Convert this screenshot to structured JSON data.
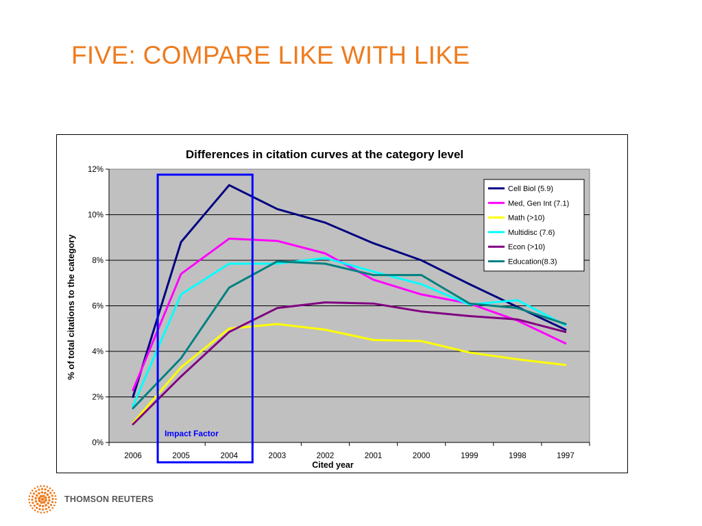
{
  "slide": {
    "title": "FIVE: COMPARE LIKE WITH LIKE",
    "title_color": "#ee7b1e"
  },
  "logo": {
    "text": "THOMSON REUTERS",
    "icon": "thomson-reuters-dot-sphere-icon",
    "color": "#ee7b1e"
  },
  "chart_data": {
    "type": "line",
    "title": "Differences in citation curves at the category level",
    "xlabel": "Cited year",
    "ylabel": "% of total citations to the category",
    "categories": [
      "2006",
      "2005",
      "2004",
      "2003",
      "2002",
      "2001",
      "2000",
      "1999",
      "1998",
      "1997"
    ],
    "ylim": [
      0,
      12
    ],
    "yticks": [
      0,
      2,
      4,
      6,
      8,
      10,
      12
    ],
    "ytick_labels": [
      "0%",
      "2%",
      "4%",
      "6%",
      "8%",
      "10%",
      "12%"
    ],
    "grid": "horizontal",
    "plot_background": "#c0c0c0",
    "legend_position": "top-right",
    "series": [
      {
        "name": "Cell Biol (5.9)",
        "color": "#000080",
        "values": [
          2.0,
          8.8,
          11.3,
          10.25,
          9.65,
          8.75,
          8.0,
          6.95,
          5.95,
          4.95
        ]
      },
      {
        "name": "Med, Gen Int (7.1)",
        "color": "#ff00ff",
        "values": [
          2.3,
          7.4,
          8.95,
          8.85,
          8.3,
          7.15,
          6.5,
          6.1,
          5.35,
          4.35
        ]
      },
      {
        "name": "Math (>10)",
        "color": "#ffff00",
        "values": [
          0.85,
          3.3,
          5.0,
          5.2,
          4.95,
          4.5,
          4.45,
          3.95,
          3.65,
          3.4
        ]
      },
      {
        "name": "Multidisc (7.6)",
        "color": "#00ffff",
        "values": [
          1.6,
          6.5,
          7.85,
          7.85,
          8.1,
          7.5,
          6.95,
          6.05,
          6.25,
          5.15
        ]
      },
      {
        "name": "Econ (>10)",
        "color": "#800080",
        "values": [
          0.8,
          2.9,
          4.85,
          5.9,
          6.15,
          6.1,
          5.75,
          5.55,
          5.4,
          4.85
        ]
      },
      {
        "name": "Education(8.3)",
        "color": "#008080",
        "values": [
          1.5,
          3.7,
          6.8,
          7.95,
          7.85,
          7.35,
          7.35,
          6.1,
          5.9,
          5.2
        ]
      }
    ],
    "annotation": {
      "text": "Impact Factor",
      "highlighted_categories": [
        "2005",
        "2004"
      ],
      "color": "#0000ff"
    }
  }
}
